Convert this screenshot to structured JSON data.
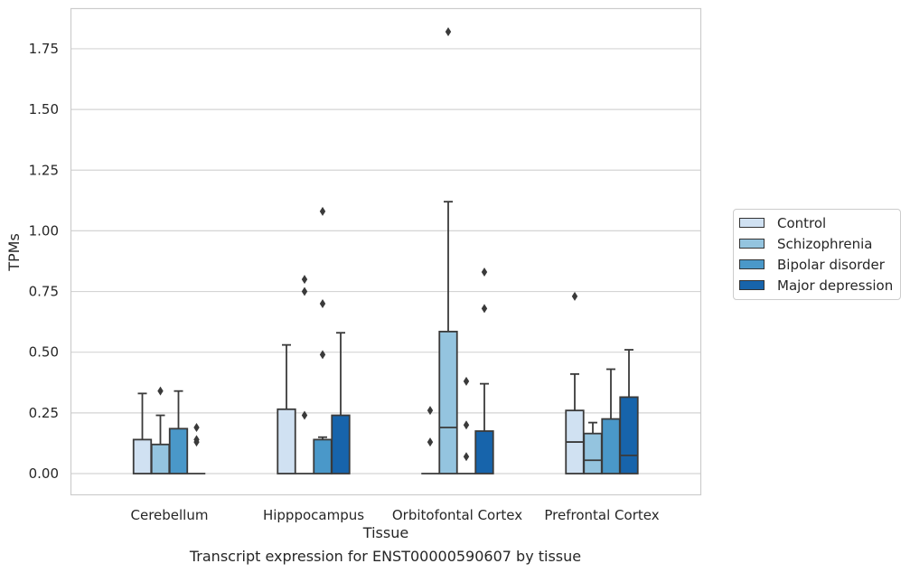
{
  "chart_data": {
    "type": "box",
    "xlabel": "Tissue",
    "ylabel": "TPMs",
    "caption": "Transcript expression for ENST00000590607 by tissue",
    "categories": [
      "Cerebellum",
      "Hipppocampus",
      "Orbitofontal Cortex",
      "Prefrontal Cortex"
    ],
    "ylim": [
      -0.09,
      1.93
    ],
    "yticks": [
      "0.00",
      "0.25",
      "0.50",
      "0.75",
      "1.00",
      "1.25",
      "1.50",
      "1.75"
    ],
    "grid": true,
    "legend_position": "right",
    "series": [
      {
        "name": "Control",
        "color": "#d0e1f2",
        "boxes": [
          {
            "min": 0,
            "q1": 0,
            "median": 0,
            "q3": 0.14,
            "max": 0.33,
            "outliers": []
          },
          {
            "min": 0,
            "q1": 0,
            "median": 0,
            "q3": 0.265,
            "max": 0.53,
            "outliers": []
          },
          {
            "min": 0,
            "q1": 0,
            "median": 0,
            "q3": 0,
            "max": 0,
            "outliers": [
              0.13,
              0.26
            ]
          },
          {
            "min": 0,
            "q1": 0,
            "median": 0.13,
            "q3": 0.26,
            "max": 0.41,
            "outliers": [
              0.73
            ]
          }
        ]
      },
      {
        "name": "Schizophrenia",
        "color": "#94c4df",
        "boxes": [
          {
            "min": 0,
            "q1": 0,
            "median": 0,
            "q3": 0.12,
            "max": 0.24,
            "outliers": [
              0.34
            ]
          },
          {
            "min": 0,
            "q1": 0,
            "median": 0,
            "q3": 0,
            "max": 0,
            "outliers": [
              0.24,
              0.75,
              0.8
            ]
          },
          {
            "min": 0,
            "q1": 0,
            "median": 0.19,
            "q3": 0.585,
            "max": 1.12,
            "outliers": [
              1.82
            ]
          },
          {
            "min": 0,
            "q1": 0,
            "median": 0.055,
            "q3": 0.165,
            "max": 0.21,
            "outliers": []
          }
        ]
      },
      {
        "name": "Bipolar disorder",
        "color": "#4a98c9",
        "boxes": [
          {
            "min": 0,
            "q1": 0,
            "median": 0,
            "q3": 0.185,
            "max": 0.34,
            "outliers": []
          },
          {
            "min": 0,
            "q1": 0,
            "median": 0,
            "q3": 0.14,
            "max": 0.15,
            "outliers": [
              0.49,
              0.7,
              1.08
            ]
          },
          {
            "min": 0,
            "q1": 0,
            "median": 0,
            "q3": 0,
            "max": 0,
            "outliers": [
              0.07,
              0.2,
              0.38
            ]
          },
          {
            "min": 0,
            "q1": 0,
            "median": 0,
            "q3": 0.225,
            "max": 0.43,
            "outliers": []
          }
        ]
      },
      {
        "name": "Major depression",
        "color": "#1764ab",
        "boxes": [
          {
            "min": 0,
            "q1": 0,
            "median": 0,
            "q3": 0,
            "max": 0,
            "outliers": [
              0.13,
              0.14,
              0.19
            ]
          },
          {
            "min": 0,
            "q1": 0,
            "median": 0,
            "q3": 0.24,
            "max": 0.58,
            "outliers": []
          },
          {
            "min": 0,
            "q1": 0,
            "median": 0,
            "q3": 0.175,
            "max": 0.37,
            "outliers": [
              0.68,
              0.83
            ]
          },
          {
            "min": 0,
            "q1": 0,
            "median": 0.075,
            "q3": 0.315,
            "max": 0.51,
            "outliers": []
          }
        ]
      }
    ]
  }
}
